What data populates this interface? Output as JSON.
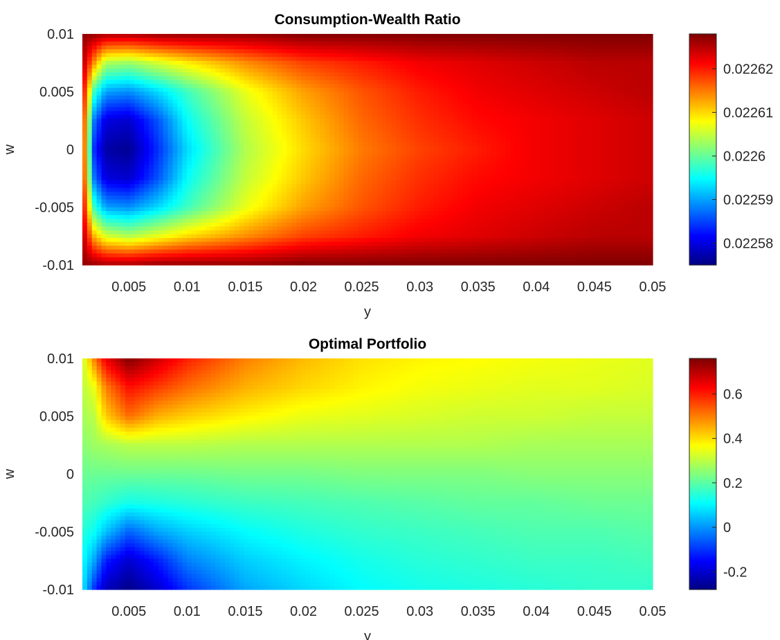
{
  "chart_data": [
    {
      "type": "heatmap",
      "title": "Consumption-Wealth Ratio",
      "xlabel": "y",
      "ylabel": "w",
      "xlim": [
        0.001,
        0.05
      ],
      "ylim": [
        -0.01,
        0.01
      ],
      "xticks": [
        0.005,
        0.01,
        0.015,
        0.02,
        0.025,
        0.03,
        0.035,
        0.04,
        0.045,
        0.05
      ],
      "xtick_labels": [
        "0.005",
        "0.01",
        "0.015",
        "0.02",
        "0.025",
        "0.03",
        "0.035",
        "0.04",
        "0.045",
        "0.05"
      ],
      "yticks": [
        0.01,
        0.005,
        0,
        -0.005,
        -0.01
      ],
      "ytick_labels": [
        "0.01",
        "0.005",
        "0",
        "-0.005",
        "-0.01"
      ],
      "clim": [
        0.022575,
        0.022628
      ],
      "colorbar_ticks": [
        0.02262,
        0.02261,
        0.0226,
        0.02259,
        0.02258
      ],
      "colorbar_labels": [
        "0.02262",
        "0.02261",
        "0.0226",
        "0.02259",
        "0.02258"
      ],
      "colormap": "jet",
      "x": [
        0.001,
        0.002,
        0.003,
        0.005,
        0.0075,
        0.01,
        0.015,
        0.02,
        0.025,
        0.03,
        0.035,
        0.04,
        0.045,
        0.05
      ],
      "y": [
        0.01,
        0.0075,
        0.005,
        0.0025,
        0,
        -0.0025,
        -0.005,
        -0.0075,
        -0.01
      ],
      "z": [
        [
          0.022627,
          0.022627,
          0.022626,
          0.022626,
          0.022627,
          0.022627,
          0.022627,
          0.022628,
          0.022628,
          0.022628,
          0.022628,
          0.022628,
          0.022628,
          0.022628
        ],
        [
          0.022626,
          0.022614,
          0.022604,
          0.022603,
          0.022606,
          0.022609,
          0.022614,
          0.022618,
          0.02262,
          0.022622,
          0.022623,
          0.022624,
          0.022625,
          0.022625
        ],
        [
          0.022624,
          0.022598,
          0.02259,
          0.022589,
          0.022593,
          0.022598,
          0.022607,
          0.022613,
          0.022617,
          0.02262,
          0.022622,
          0.022623,
          0.022624,
          0.022625
        ],
        [
          0.022622,
          0.022588,
          0.02258,
          0.022579,
          0.022586,
          0.022595,
          0.022605,
          0.022611,
          0.022616,
          0.022619,
          0.022621,
          0.022622,
          0.022623,
          0.022624
        ],
        [
          0.022622,
          0.022584,
          0.022577,
          0.022576,
          0.022584,
          0.022593,
          0.022604,
          0.02261,
          0.022615,
          0.022618,
          0.02262,
          0.022622,
          0.022623,
          0.022624
        ],
        [
          0.022622,
          0.022588,
          0.02258,
          0.022579,
          0.022586,
          0.022595,
          0.022605,
          0.022611,
          0.022616,
          0.022619,
          0.022621,
          0.022622,
          0.022623,
          0.022624
        ],
        [
          0.022624,
          0.022598,
          0.02259,
          0.022589,
          0.022593,
          0.022598,
          0.022607,
          0.022613,
          0.022617,
          0.02262,
          0.022622,
          0.022623,
          0.022624,
          0.022625
        ],
        [
          0.022626,
          0.022612,
          0.022606,
          0.022604,
          0.022607,
          0.02261,
          0.022614,
          0.022618,
          0.02262,
          0.022622,
          0.022623,
          0.022624,
          0.022625,
          0.022625
        ],
        [
          0.022627,
          0.022627,
          0.022626,
          0.022626,
          0.022627,
          0.022627,
          0.022627,
          0.022628,
          0.022628,
          0.022628,
          0.022628,
          0.022628,
          0.022628,
          0.022628
        ]
      ]
    },
    {
      "type": "heatmap",
      "title": "Optimal Portfolio",
      "xlabel": "y",
      "ylabel": "w",
      "xlim": [
        0.001,
        0.05
      ],
      "ylim": [
        -0.01,
        0.01
      ],
      "xticks": [
        0.005,
        0.01,
        0.015,
        0.02,
        0.025,
        0.03,
        0.035,
        0.04,
        0.045,
        0.05
      ],
      "xtick_labels": [
        "0.005",
        "0.01",
        "0.015",
        "0.02",
        "0.025",
        "0.03",
        "0.035",
        "0.04",
        "0.045",
        "0.05"
      ],
      "yticks": [
        0.01,
        0.005,
        0,
        -0.005,
        -0.01
      ],
      "ytick_labels": [
        "0.01",
        "0.005",
        "0",
        "-0.005",
        "-0.01"
      ],
      "clim": [
        -0.28,
        0.76
      ],
      "colorbar_ticks": [
        0.6,
        0.4,
        0.2,
        0,
        -0.2
      ],
      "colorbar_labels": [
        "0.6",
        "0.4",
        "0.2",
        "0",
        "-0.2"
      ],
      "colormap": "jet",
      "x": [
        0.001,
        0.002,
        0.003,
        0.005,
        0.0075,
        0.01,
        0.015,
        0.02,
        0.025,
        0.03,
        0.035,
        0.04,
        0.045,
        0.05
      ],
      "y": [
        0.01,
        0.0075,
        0.005,
        0.0025,
        0,
        -0.0025,
        -0.005,
        -0.0075,
        -0.01
      ],
      "z": [
        [
          0.3,
          0.5,
          0.65,
          0.76,
          0.68,
          0.6,
          0.5,
          0.44,
          0.4,
          0.38,
          0.37,
          0.36,
          0.35,
          0.34
        ],
        [
          0.3,
          0.35,
          0.5,
          0.62,
          0.57,
          0.52,
          0.45,
          0.41,
          0.38,
          0.36,
          0.35,
          0.34,
          0.34,
          0.33
        ],
        [
          0.28,
          0.3,
          0.42,
          0.52,
          0.45,
          0.42,
          0.38,
          0.35,
          0.34,
          0.33,
          0.32,
          0.32,
          0.31,
          0.31
        ],
        [
          0.25,
          0.27,
          0.28,
          0.3,
          0.3,
          0.3,
          0.29,
          0.29,
          0.29,
          0.29,
          0.29,
          0.28,
          0.28,
          0.28
        ],
        [
          0.22,
          0.22,
          0.22,
          0.22,
          0.22,
          0.22,
          0.23,
          0.23,
          0.24,
          0.24,
          0.24,
          0.25,
          0.25,
          0.25
        ],
        [
          0.19,
          0.18,
          0.16,
          0.13,
          0.14,
          0.15,
          0.17,
          0.18,
          0.19,
          0.2,
          0.21,
          0.21,
          0.22,
          0.22
        ],
        [
          0.15,
          0.12,
          0.05,
          -0.05,
          0.02,
          0.06,
          0.11,
          0.14,
          0.16,
          0.17,
          0.18,
          0.19,
          0.19,
          0.2
        ],
        [
          0.12,
          0.02,
          -0.12,
          -0.2,
          -0.12,
          -0.02,
          0.06,
          0.1,
          0.13,
          0.15,
          0.16,
          0.17,
          0.17,
          0.18
        ],
        [
          0.1,
          -0.1,
          -0.22,
          -0.27,
          -0.2,
          -0.1,
          0.02,
          0.07,
          0.11,
          0.13,
          0.14,
          0.15,
          0.16,
          0.16
        ]
      ]
    }
  ]
}
